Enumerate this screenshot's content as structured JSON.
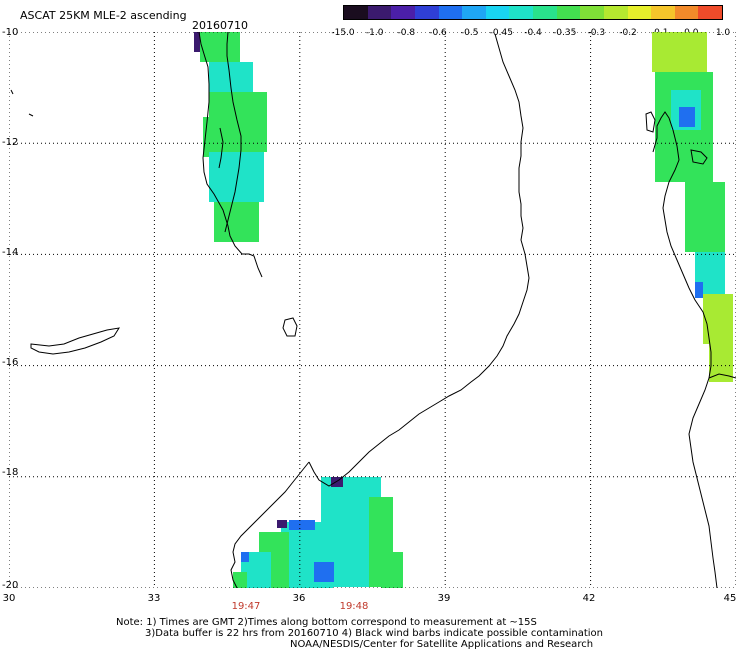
{
  "header": {
    "title": "ASCAT 25KM MLE-2 ascending",
    "date": "20160710"
  },
  "colorbar": {
    "labels": [
      "-15.0",
      "-1.0",
      "-0.8",
      "-0.6",
      "-0.5",
      "-0.45",
      "-0.4",
      "-0.35",
      "-0.3",
      "-0.2",
      "-0.1",
      "0.0",
      "1.0"
    ],
    "colors": [
      "#1a0d1f",
      "#3b1a6e",
      "#4b1fa8",
      "#2f3fd6",
      "#1f6ff0",
      "#1fa6f5",
      "#19d4f2",
      "#1fe3c8",
      "#29e38c",
      "#43df50",
      "#7fe037",
      "#b5e82f",
      "#e6ef2b",
      "#f5c52b",
      "#f28a2a",
      "#ef4b2a"
    ]
  },
  "axes": {
    "lat_labels": [
      "-10",
      "-12",
      "-14",
      "-16",
      "-18",
      "-20"
    ],
    "lon_labels": [
      "30",
      "33",
      "36",
      "39",
      "42",
      "45"
    ]
  },
  "swath_times": [
    "19:47",
    "19:48"
  ],
  "notes": {
    "line1": "Note: 1) Times are GMT 2)Times along bottom correspond to measurement at ~15S",
    "line2": "3)Data buffer is 22 hrs from 20160710 4) Black wind barbs indicate possible contamination",
    "line3": "NOAA/NESDIS/Center for Satellite Applications and Research"
  },
  "legend_colors": {
    "green": "#33e35a",
    "cyan": "#1fe3c8",
    "blue": "#1f6ff0",
    "purple": "#3b1a6e",
    "yellowgreen": "#a8ea33"
  }
}
